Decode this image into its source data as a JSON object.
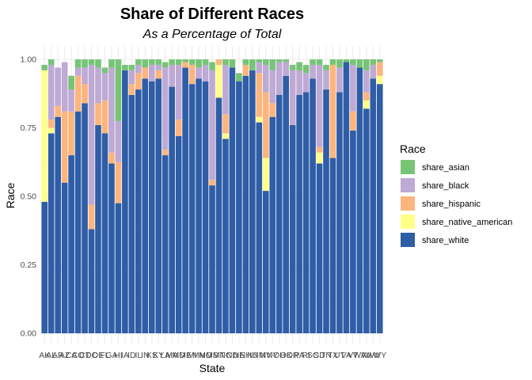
{
  "chart_data": {
    "type": "bar",
    "stacked": true,
    "title": "Share of Different Races",
    "subtitle": "As a Percentage of Total",
    "xlabel": "State",
    "ylabel": "Race",
    "ylim": [
      0,
      1
    ],
    "yticks": [
      "0.00",
      "0.25",
      "0.50",
      "0.75",
      "1.00"
    ],
    "grid": true,
    "legend_position": "right",
    "legend_title": "Race",
    "categories": [
      "AK",
      "AL",
      "AR",
      "AZ",
      "CA",
      "CO",
      "CT",
      "DC",
      "DE",
      "FL",
      "GA",
      "HI",
      "IA",
      "ID",
      "IL",
      "IN",
      "KS",
      "KY",
      "LA",
      "MA",
      "MD",
      "ME",
      "MI",
      "MN",
      "MO",
      "MS",
      "MT",
      "NC",
      "ND",
      "NE",
      "NH",
      "NJ",
      "NM",
      "NV",
      "NY",
      "OH",
      "OK",
      "OR",
      "PA",
      "RI",
      "SC",
      "SD",
      "TN",
      "TX",
      "UT",
      "VA",
      "VT",
      "WA",
      "WI",
      "WV",
      "WY"
    ],
    "series": [
      {
        "name": "share_white",
        "color": "#2F5DA6",
        "values": [
          0.48,
          0.73,
          0.79,
          0.55,
          0.65,
          0.81,
          0.84,
          0.38,
          0.76,
          0.73,
          0.62,
          0.475,
          0.96,
          0.87,
          0.89,
          0.93,
          0.92,
          0.93,
          0.65,
          0.9,
          0.72,
          0.97,
          0.91,
          0.93,
          0.92,
          0.54,
          0.86,
          0.71,
          0.97,
          0.92,
          0.94,
          0.96,
          0.77,
          0.52,
          0.79,
          0.87,
          0.94,
          0.76,
          0.87,
          0.88,
          0.93,
          0.62,
          0.89,
          0.64,
          0.88,
          0.99,
          0.74,
          0.97,
          0.82,
          0.93,
          0.91
        ]
      },
      {
        "name": "share_native_american",
        "color": "#FFFF88",
        "values": [
          0.48,
          0.02,
          0.0,
          0.0,
          0.0,
          0.0,
          0.0,
          0.0,
          0.0,
          0.0,
          0.0,
          0.0,
          0.0,
          0.0,
          0.0,
          0.0,
          0.0,
          0.0,
          0.0,
          0.0,
          0.0,
          0.0,
          0.0,
          0.0,
          0.0,
          0.0,
          0.12,
          0.02,
          0.0,
          0.0,
          0.0,
          0.0,
          0.02,
          0.12,
          0.0,
          0.0,
          0.0,
          0.0,
          0.0,
          0.0,
          0.0,
          0.04,
          0.0,
          0.0,
          0.0,
          0.0,
          0.0,
          0.0,
          0.03,
          0.0,
          0.03
        ]
      },
      {
        "name": "share_hispanic",
        "color": "#FDB57D",
        "values": [
          0.0,
          0.03,
          0.04,
          0.26,
          0.16,
          0.13,
          0.07,
          0.09,
          0.08,
          0.12,
          0.04,
          0.15,
          0.0,
          0.04,
          0.06,
          0.04,
          0.0,
          0.03,
          0.02,
          0.0,
          0.06,
          0.02,
          0.07,
          0.0,
          0.0,
          0.02,
          0.02,
          0.07,
          0.0,
          0.0,
          0.04,
          0.0,
          0.16,
          0.24,
          0.05,
          0.0,
          0.0,
          0.0,
          0.0,
          0.0,
          0.0,
          0.02,
          0.0,
          0.34,
          0.0,
          0.0,
          0.07,
          0.0,
          0.03,
          0.0,
          0.05
        ]
      },
      {
        "name": "share_black",
        "color": "#BEAAD4",
        "values": [
          0.0,
          0.2,
          0.14,
          0.18,
          0.08,
          0.03,
          0.06,
          0.51,
          0.13,
          0.1,
          0.31,
          0.15,
          0.0,
          0.05,
          0.03,
          0.0,
          0.06,
          0.02,
          0.3,
          0.08,
          0.2,
          0.0,
          0.0,
          0.04,
          0.06,
          0.4,
          0.0,
          0.18,
          0.0,
          0.0,
          0.0,
          0.0,
          0.04,
          0.1,
          0.12,
          0.12,
          0.05,
          0.2,
          0.09,
          0.07,
          0.05,
          0.3,
          0.07,
          0.0,
          0.09,
          0.0,
          0.17,
          0.0,
          0.08,
          0.05,
          0.0
        ]
      },
      {
        "name": "share_asian",
        "color": "#77C477",
        "values": [
          0.02,
          0.02,
          0.0,
          0.0,
          0.05,
          0.03,
          0.03,
          0.02,
          0.03,
          0.02,
          0.03,
          0.23,
          0.02,
          0.02,
          0.02,
          0.03,
          0.02,
          0.02,
          0.02,
          0.02,
          0.02,
          0.01,
          0.02,
          0.03,
          0.02,
          0.03,
          0.0,
          0.02,
          0.03,
          0.03,
          0.02,
          0.04,
          0.01,
          0.02,
          0.04,
          0.01,
          0.01,
          0.02,
          0.03,
          0.03,
          0.02,
          0.02,
          0.02,
          0.02,
          0.03,
          0.01,
          0.02,
          0.03,
          0.04,
          0.02,
          0.01
        ]
      }
    ]
  }
}
